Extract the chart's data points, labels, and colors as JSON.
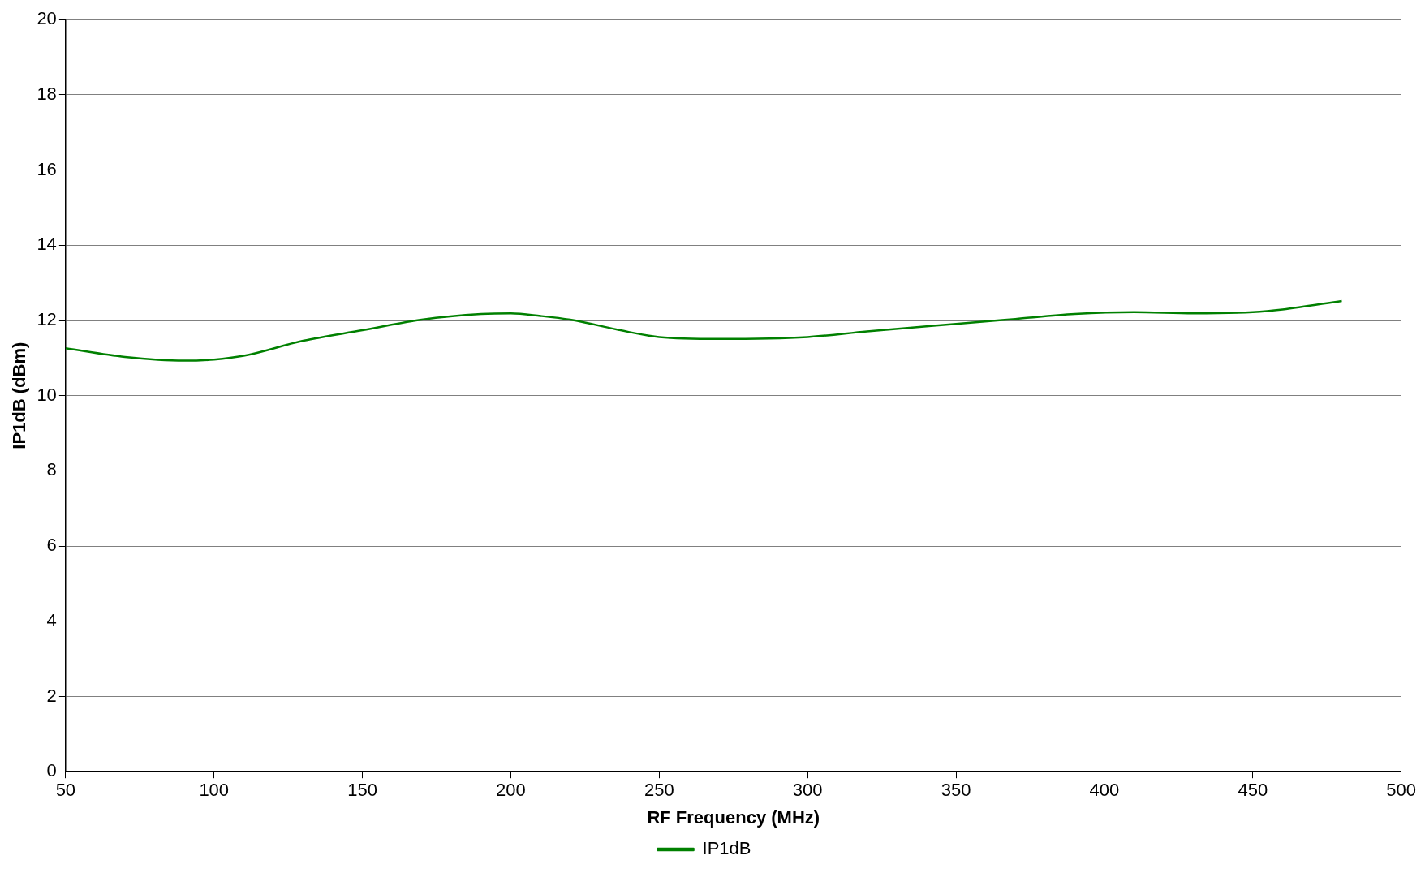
{
  "chart_data": {
    "type": "line",
    "xlabel": "RF Frequency (MHz)",
    "ylabel": "IP1dB (dBm)",
    "x": [
      50,
      70,
      90,
      100,
      110,
      130,
      150,
      170,
      190,
      200,
      210,
      220,
      240,
      250,
      270,
      300,
      320,
      350,
      370,
      390,
      410,
      430,
      450,
      460,
      480
    ],
    "series": [
      {
        "name": "IP1dB",
        "color": "#008000",
        "values": [
          11.26,
          11.03,
          10.93,
          10.96,
          11.06,
          11.46,
          11.74,
          12.02,
          12.17,
          12.19,
          12.12,
          12.02,
          11.69,
          11.56,
          11.51,
          11.56,
          11.71,
          11.91,
          12.04,
          12.17,
          12.22,
          12.19,
          12.22,
          12.29,
          12.52
        ]
      }
    ],
    "xlim": [
      50,
      500
    ],
    "xticks": [
      50,
      100,
      150,
      200,
      250,
      300,
      350,
      400,
      450,
      500
    ],
    "ylim": [
      0,
      20
    ],
    "yticks": [
      0,
      2,
      4,
      6,
      8,
      10,
      12,
      14,
      16,
      18,
      20
    ],
    "grid": "y",
    "legend": "bottom",
    "marker": "none",
    "line_style": "solid"
  }
}
